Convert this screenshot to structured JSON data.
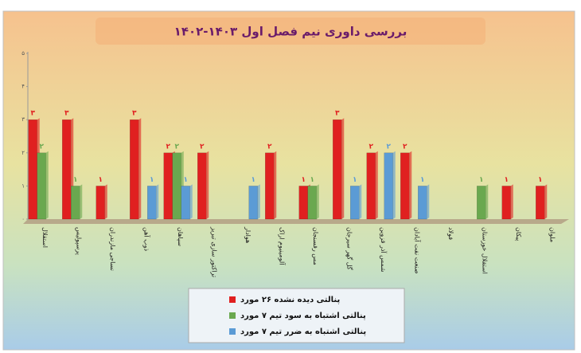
{
  "chart_data": {
    "type": "bar",
    "title": "بررسی داوری نیم فصل اول ۱۴۰۳-۱۴۰۲",
    "categories": [
      "استقلال",
      "پرسپولیس",
      "نساجی مازندران",
      "ذوب آهن",
      "سپاهان",
      "تراکتور سازی تبریز",
      "هوادار",
      "آلومینیوم اراک",
      "مس رفسنجان",
      "گل گهر سیرجان",
      "شمس آذر قزوین",
      "صنعت نفت آبادان",
      "فولاد",
      "استقلال خوزستان",
      "پیکان",
      "ملوان"
    ],
    "series": [
      {
        "name": "پنالتی دیده نشده ۲۶ مورد",
        "color": "#e02020",
        "values": [
          3,
          3,
          1,
          3,
          2,
          2,
          null,
          2,
          1,
          3,
          2,
          2,
          null,
          null,
          1,
          1
        ],
        "value_labels": [
          "۳",
          "۳",
          "۱",
          "۳",
          "۲",
          "۲",
          null,
          "۲",
          "۱",
          "۳",
          "۲",
          "۲",
          null,
          null,
          "۱",
          "۱"
        ]
      },
      {
        "name": "پنالتی اشتباه به سود تیم ۷ مورد",
        "color": "#6aa84f",
        "values": [
          2,
          1,
          null,
          null,
          2,
          null,
          null,
          null,
          1,
          null,
          null,
          null,
          null,
          1,
          null,
          null
        ],
        "value_labels": [
          "۲",
          "۱",
          null,
          null,
          "۲",
          null,
          null,
          null,
          "۱",
          null,
          null,
          null,
          null,
          "۱",
          null,
          null
        ]
      },
      {
        "name": "پنالتی اشتباه به ضرر تیم ۷ مورد",
        "color": "#5b9bd5",
        "values": [
          null,
          null,
          null,
          1,
          1,
          null,
          1,
          null,
          null,
          1,
          2,
          1,
          null,
          null,
          null,
          null
        ],
        "value_labels": [
          null,
          null,
          null,
          "۱",
          "۱",
          null,
          "۱",
          null,
          null,
          "۱",
          "۲",
          "۱",
          null,
          null,
          null,
          null
        ]
      }
    ],
    "ylim": [
      0,
      5
    ],
    "yticks": [
      {
        "value": 0,
        "label": "۰"
      },
      {
        "value": 1,
        "label": "۱"
      },
      {
        "value": 2,
        "label": "۲"
      },
      {
        "value": 3,
        "label": "۳"
      },
      {
        "value": 4,
        "label": "۴"
      },
      {
        "value": 5,
        "label": "۵"
      }
    ],
    "grid": false
  }
}
